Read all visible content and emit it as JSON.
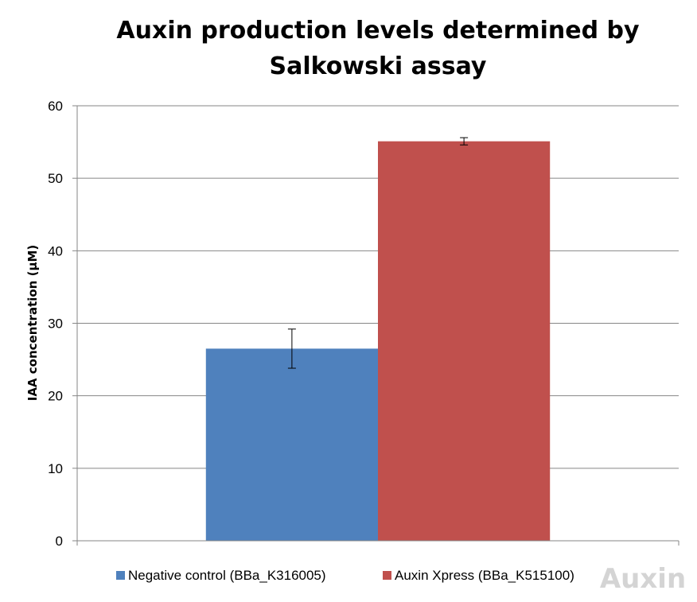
{
  "chart_data": {
    "type": "bar",
    "title_lines": [
      "Auxin production levels determined by",
      "Salkowski assay"
    ],
    "xlabel": "",
    "ylabel": "IAA concentration (µM)",
    "ylim": [
      0,
      60
    ],
    "yticks": [
      0,
      10,
      20,
      30,
      40,
      50,
      60
    ],
    "grid": true,
    "legend_position": "bottom",
    "categories": [
      ""
    ],
    "series": [
      {
        "name": "Negative control (BBa_K316005)",
        "values": [
          26.5
        ],
        "error": [
          2.7
        ],
        "color": "#4f81bd"
      },
      {
        "name": "Auxin Xpress (BBa_K515100)",
        "values": [
          55.1
        ],
        "error": [
          0.5
        ],
        "color": "#c0504d"
      }
    ]
  },
  "logo": {
    "text": "Auxin"
  }
}
